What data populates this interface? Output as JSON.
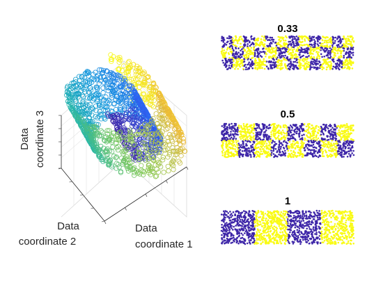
{
  "chart_data": [
    {
      "type": "scatter",
      "subtype": "scatter3",
      "description_shape": "swiss roll",
      "axis_labels": {
        "x": "Data coordinate 1",
        "y": "Data coordinate 2",
        "z": "Data coordinate 3"
      },
      "x_label_lines": [
        "Data",
        "coordinate 1"
      ],
      "y_label_lines": [
        "Data",
        "coordinate 2"
      ],
      "z_label_lines": [
        "Data",
        "coordinate 3"
      ],
      "grid": true,
      "tick_labels": false,
      "colormap": "parula",
      "marker": "open-circle"
    },
    {
      "type": "scatter",
      "title": "0.33",
      "pattern": "checkerboard",
      "colors": [
        "#3e26a8",
        "#f9fb15"
      ],
      "columns": 12,
      "rows": 3
    },
    {
      "type": "scatter",
      "title": "0.5",
      "pattern": "checkerboard",
      "colors": [
        "#3e26a8",
        "#f9fb15"
      ],
      "columns": 8,
      "rows": 2
    },
    {
      "type": "scatter",
      "title": "1",
      "pattern": "checkerboard",
      "colors": [
        "#3e26a8",
        "#f9fb15"
      ],
      "columns": 4,
      "rows": 1
    }
  ],
  "colors": {
    "class_a": "#3e26a8",
    "class_b": "#f9fb15",
    "axis": "#262626",
    "grid": "#d9d9d9"
  }
}
